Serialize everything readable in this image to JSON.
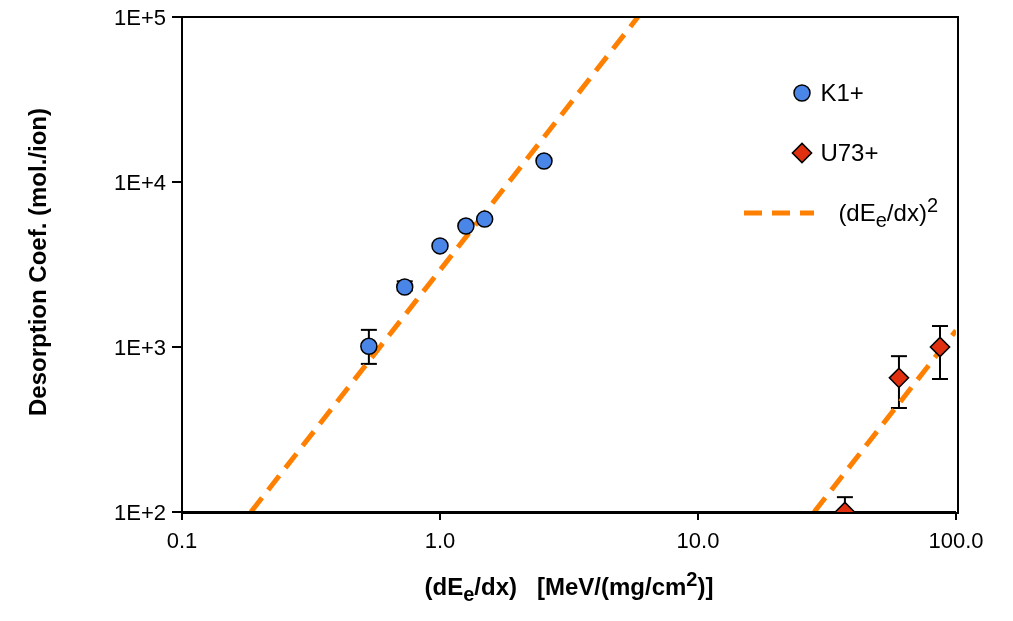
{
  "chart_data": {
    "type": "scatter",
    "xlabel": "(dE$_{e}$/dx)   [MeV/(mg/cm$^{2}$)]",
    "ylabel": "Desorption Coef. (mol./ion)",
    "log": "xy",
    "legend": "top right",
    "xlim": [
      0.1,
      100
    ],
    "xticks": [
      {
        "value": 0.1,
        "label": "0.1"
      },
      {
        "value": 1,
        "label": "1.0"
      },
      {
        "value": 10,
        "label": "10.0"
      },
      {
        "value": 100,
        "label": "100.0"
      }
    ],
    "ylim": [
      100,
      100000
    ],
    "yticks": [
      {
        "value": 100,
        "label": "1E+2"
      },
      {
        "value": 1000,
        "label": "1E+3"
      },
      {
        "value": 10000,
        "label": "1E+4"
      },
      {
        "value": 100000,
        "label": "1E+5"
      }
    ],
    "series": [
      {
        "name": "K1+",
        "marker": "circle",
        "color": "#4a86e8",
        "x": [
          0.53,
          0.73,
          1.0,
          1.26,
          1.49,
          2.53
        ],
        "values": [
          1010,
          2310,
          4100,
          5410,
          5960,
          13400
        ],
        "errors": [
          [
            790,
            1270
          ],
          [
            2200,
            2500
          ],
          null,
          null,
          null,
          null
        ]
      },
      {
        "name": "U73+",
        "marker": "diamond",
        "color": "#e03010",
        "x": [
          37.1,
          60.1,
          86.7
        ],
        "values": [
          100,
          650,
          1000
        ],
        "errors": [
          [
            100,
            123
          ],
          [
            427,
            880
          ],
          [
            640,
            1340
          ]
        ]
      },
      {
        "name": "(dE$_{e}$/dx)$^{2}$",
        "type": "line",
        "line_style": "dashed",
        "color": "#ff8000",
        "x": [
          0.185,
          5.85
        ],
        "values": [
          100,
          100000
        ]
      },
      {
        "type": "line",
        "line_style": "dashed",
        "color": "#ff8000",
        "x": [
          28.2,
          100
        ],
        "values": [
          100,
          1260
        ]
      }
    ]
  }
}
